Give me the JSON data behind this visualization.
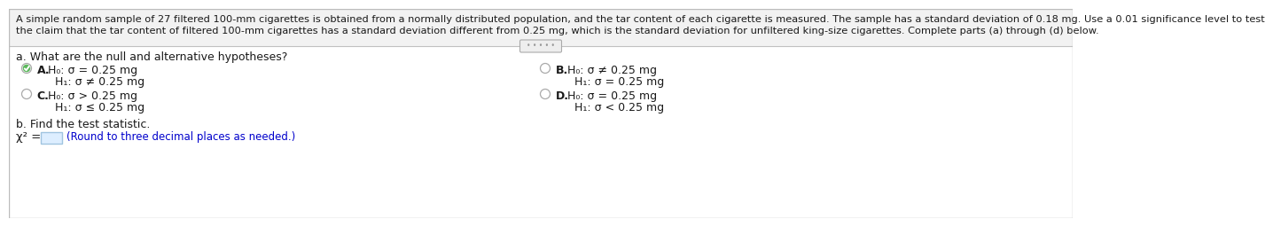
{
  "header_line1": "A simple random sample of 27 filtered 100-mm cigarettes is obtained from a normally distributed population, and the tar content of each cigarette is measured. The sample has a standard deviation of 0.18 mg. Use a 0.01 significance level to test",
  "header_line2": "the claim that the tar content of filtered 100-mm cigarettes has a standard deviation different from 0.25 mg, which is the standard deviation for unfiltered king-size cigarettes. Complete parts (a) through (d) below.",
  "section_a_label": "a. What are the null and alternative hypotheses?",
  "opt_A_letter": "A.",
  "opt_A_H0": "H₀: σ = 0.25 mg",
  "opt_A_H1": "H₁: σ ≠ 0.25 mg",
  "opt_A_selected": true,
  "opt_B_letter": "B.",
  "opt_B_H0": "H₀: σ ≠ 0.25 mg",
  "opt_B_H1": "H₁: σ = 0.25 mg",
  "opt_B_selected": false,
  "opt_C_letter": "C.",
  "opt_C_H0": "H₀: σ > 0.25 mg",
  "opt_C_H1": "H₁: σ ≤ 0.25 mg",
  "opt_C_selected": false,
  "opt_D_letter": "D.",
  "opt_D_H0": "H₀: σ = 0.25 mg",
  "opt_D_H1": "H₁: σ < 0.25 mg",
  "opt_D_selected": false,
  "section_b_label": "b. Find the test statistic.",
  "chi2_prefix": "χ² =",
  "input_hint": "(Round to three decimal places as needed.)",
  "dots": "• • • • •",
  "bg_color": "#ffffff",
  "header_bg": "#f2f2f2",
  "sep_color": "#c0c0c0",
  "text_color": "#1a1a1a",
  "blue_color": "#0000cc",
  "radio_border": "#aaaaaa",
  "check_green": "#5cb85c",
  "input_border": "#a0c4e0",
  "input_fill": "#ddeeff",
  "header_fs": 8.2,
  "body_fs": 9.0,
  "bold_fs": 9.0
}
